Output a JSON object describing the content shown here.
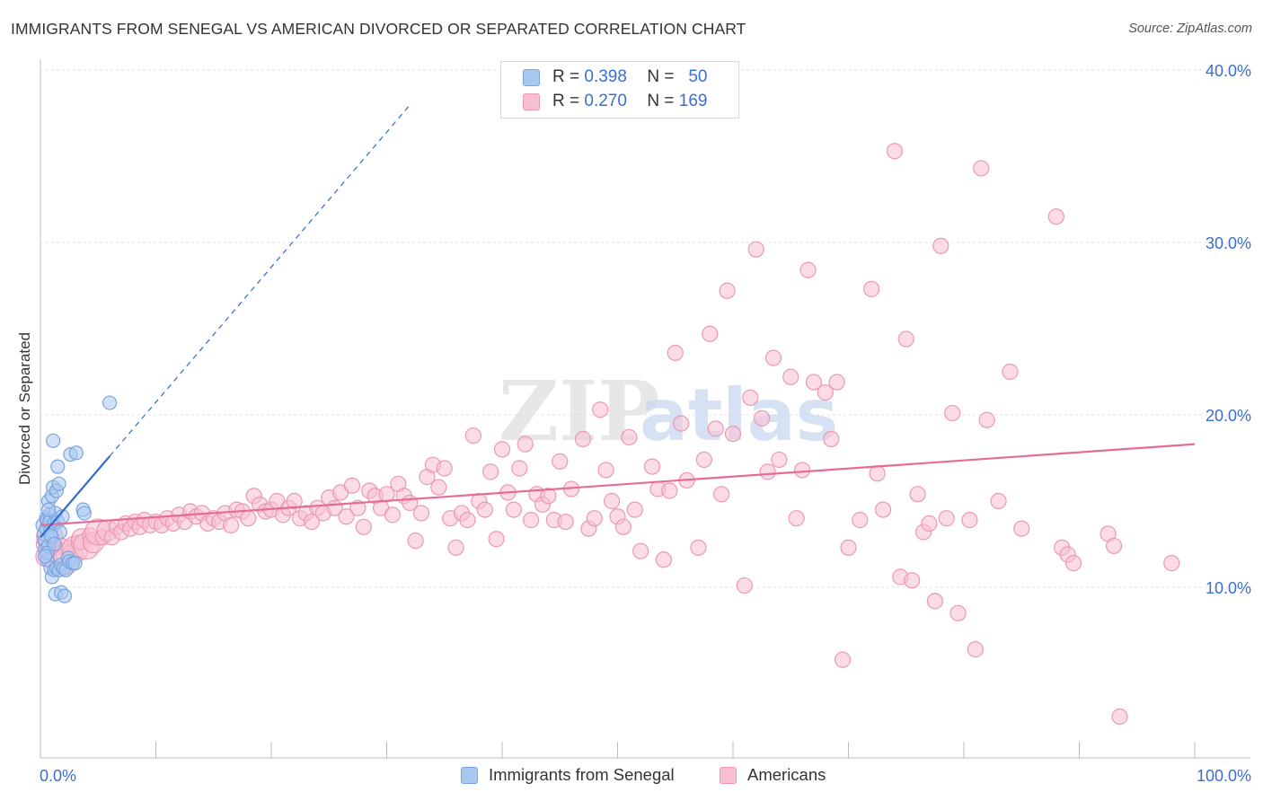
{
  "title": "IMMIGRANTS FROM SENEGAL VS AMERICAN DIVORCED OR SEPARATED CORRELATION CHART",
  "source": "Source: ZipAtlas.com",
  "watermark": {
    "part1": "ZIP",
    "part2": "atlas"
  },
  "legend": {
    "rows": [
      {
        "r_label": "R =",
        "r_value": "0.398",
        "n_label": "N =",
        "n_value": "50",
        "color": "#a9c8f0",
        "stroke": "#7ba3de"
      },
      {
        "r_label": "R =",
        "r_value": "0.270",
        "n_label": "N =",
        "n_value": "169",
        "color": "#f8bfd2",
        "stroke": "#ec98b4"
      }
    ]
  },
  "bottom_legend": [
    {
      "label": "Immigrants from Senegal",
      "color": "#a9c8f0",
      "stroke": "#7ba3de"
    },
    {
      "label": "Americans",
      "color": "#f8bfd2",
      "stroke": "#ec98b4"
    }
  ],
  "chart_data": {
    "type": "scatter",
    "title": "IMMIGRANTS FROM SENEGAL VS AMERICAN DIVORCED OR SEPARATED CORRELATION CHART",
    "xlabel": "",
    "ylabel": "Divorced or Separated",
    "xlim": [
      0,
      100
    ],
    "ylim": [
      0,
      40
    ],
    "x_tick_labels": [
      "0.0%",
      "100.0%"
    ],
    "y_ticks": [
      10,
      20,
      30,
      40
    ],
    "y_tick_labels": [
      "10.0%",
      "20.0%",
      "30.0%",
      "40.0%"
    ],
    "grid": true,
    "legend_position": "top-center",
    "colors": {
      "senegal": "#7ba3de",
      "americans": "#ec98b4",
      "senegal_line": "#2f6ad0",
      "americans_line": "#e56b98",
      "tick_label": "#3a6fd1"
    },
    "series": [
      {
        "name": "Immigrants from Senegal",
        "r": 0.398,
        "n": 50,
        "trend": {
          "x0": 0,
          "y0": 12.9,
          "x1": 6,
          "y1": 17.6,
          "extend_to_x": 32
        },
        "points": [
          [
            0.2,
            13.6
          ],
          [
            0.3,
            13.1
          ],
          [
            0.4,
            12.7
          ],
          [
            0.4,
            12.2
          ],
          [
            0.5,
            14.0
          ],
          [
            0.5,
            13.4
          ],
          [
            0.6,
            11.6
          ],
          [
            0.6,
            13.9
          ],
          [
            0.7,
            12.4
          ],
          [
            0.7,
            15.0
          ],
          [
            0.8,
            14.2
          ],
          [
            0.8,
            13.8
          ],
          [
            0.9,
            13.3
          ],
          [
            0.9,
            11.1
          ],
          [
            1.0,
            15.3
          ],
          [
            1.0,
            10.6
          ],
          [
            1.0,
            12.9
          ],
          [
            1.1,
            18.5
          ],
          [
            1.1,
            15.8
          ],
          [
            1.2,
            13.7
          ],
          [
            1.2,
            11.0
          ],
          [
            1.3,
            9.6
          ],
          [
            1.3,
            14.3
          ],
          [
            1.4,
            15.6
          ],
          [
            1.4,
            11.1
          ],
          [
            1.5,
            13.8
          ],
          [
            1.5,
            17.0
          ],
          [
            1.6,
            11.0
          ],
          [
            1.6,
            16.0
          ],
          [
            1.7,
            13.2
          ],
          [
            1.8,
            11.3
          ],
          [
            1.8,
            9.7
          ],
          [
            1.9,
            14.1
          ],
          [
            2.0,
            11.1
          ],
          [
            2.1,
            9.5
          ],
          [
            2.2,
            11.0
          ],
          [
            2.4,
            11.7
          ],
          [
            2.5,
            11.5
          ],
          [
            2.6,
            17.7
          ],
          [
            2.8,
            11.4
          ],
          [
            3.0,
            11.4
          ],
          [
            3.1,
            17.8
          ],
          [
            3.7,
            14.5
          ],
          [
            3.8,
            14.3
          ],
          [
            6.0,
            20.7
          ],
          [
            0.6,
            12.0
          ],
          [
            0.9,
            13.0
          ],
          [
            1.2,
            12.5
          ],
          [
            0.4,
            11.8
          ],
          [
            0.7,
            14.5
          ]
        ]
      },
      {
        "name": "Americans",
        "r": 0.27,
        "n": 169,
        "trend": {
          "x0": 0,
          "y0": 13.6,
          "x1": 100,
          "y1": 18.3
        },
        "points": [
          [
            0.3,
            12.5
          ],
          [
            0.5,
            11.8
          ],
          [
            0.8,
            12.9
          ],
          [
            1.0,
            12.2
          ],
          [
            1.2,
            12.0
          ],
          [
            1.5,
            11.6
          ],
          [
            1.8,
            12.4
          ],
          [
            2.0,
            11.9
          ],
          [
            2.2,
            11.5
          ],
          [
            2.5,
            12.3
          ],
          [
            2.8,
            11.9
          ],
          [
            3.0,
            12.2
          ],
          [
            3.3,
            12.6
          ],
          [
            3.6,
            12.8
          ],
          [
            4.0,
            12.4
          ],
          [
            4.3,
            13.0
          ],
          [
            4.6,
            12.6
          ],
          [
            5.0,
            13.2
          ],
          [
            5.4,
            12.9
          ],
          [
            5.8,
            13.3
          ],
          [
            6.2,
            12.9
          ],
          [
            6.6,
            13.5
          ],
          [
            7.0,
            13.2
          ],
          [
            7.4,
            13.7
          ],
          [
            7.8,
            13.4
          ],
          [
            8.2,
            13.8
          ],
          [
            8.6,
            13.5
          ],
          [
            9.0,
            13.9
          ],
          [
            9.5,
            13.6
          ],
          [
            10.0,
            13.8
          ],
          [
            10.5,
            13.6
          ],
          [
            11.0,
            14.0
          ],
          [
            11.5,
            13.7
          ],
          [
            12.0,
            14.2
          ],
          [
            12.5,
            13.8
          ],
          [
            13.0,
            14.4
          ],
          [
            13.5,
            14.1
          ],
          [
            14.0,
            14.3
          ],
          [
            14.5,
            13.7
          ],
          [
            15.0,
            14.0
          ],
          [
            15.5,
            13.8
          ],
          [
            16.0,
            14.3
          ],
          [
            16.5,
            13.6
          ],
          [
            17.0,
            14.5
          ],
          [
            17.5,
            14.4
          ],
          [
            18.0,
            14.0
          ],
          [
            18.5,
            15.3
          ],
          [
            19.0,
            14.8
          ],
          [
            19.5,
            14.4
          ],
          [
            20.0,
            14.5
          ],
          [
            20.5,
            15.0
          ],
          [
            21.0,
            14.2
          ],
          [
            21.5,
            14.6
          ],
          [
            22.0,
            15.0
          ],
          [
            22.5,
            14.0
          ],
          [
            23.0,
            14.3
          ],
          [
            23.5,
            13.8
          ],
          [
            24.0,
            14.6
          ],
          [
            24.5,
            14.3
          ],
          [
            25.0,
            15.2
          ],
          [
            25.5,
            14.6
          ],
          [
            26.0,
            15.5
          ],
          [
            26.5,
            14.1
          ],
          [
            27.0,
            15.9
          ],
          [
            27.5,
            14.6
          ],
          [
            28.0,
            13.5
          ],
          [
            28.5,
            15.6
          ],
          [
            29.0,
            15.3
          ],
          [
            29.5,
            14.6
          ],
          [
            30.0,
            15.4
          ],
          [
            30.5,
            14.2
          ],
          [
            31.0,
            16.0
          ],
          [
            31.5,
            15.3
          ],
          [
            32.0,
            14.9
          ],
          [
            32.5,
            12.7
          ],
          [
            33.0,
            14.3
          ],
          [
            33.5,
            16.4
          ],
          [
            34.0,
            17.1
          ],
          [
            34.5,
            15.8
          ],
          [
            35.0,
            16.9
          ],
          [
            35.5,
            14.0
          ],
          [
            36.0,
            12.3
          ],
          [
            36.5,
            14.3
          ],
          [
            37.0,
            13.9
          ],
          [
            37.5,
            18.8
          ],
          [
            38.0,
            15.0
          ],
          [
            38.5,
            14.5
          ],
          [
            39.0,
            16.7
          ],
          [
            39.5,
            12.8
          ],
          [
            40.0,
            18.0
          ],
          [
            40.5,
            15.5
          ],
          [
            41.0,
            14.5
          ],
          [
            41.5,
            16.9
          ],
          [
            42.0,
            18.3
          ],
          [
            42.5,
            13.9
          ],
          [
            43.0,
            15.4
          ],
          [
            43.5,
            14.8
          ],
          [
            44.0,
            15.3
          ],
          [
            44.5,
            13.9
          ],
          [
            45.0,
            17.3
          ],
          [
            45.5,
            13.8
          ],
          [
            46.0,
            15.7
          ],
          [
            47.0,
            18.6
          ],
          [
            47.5,
            13.4
          ],
          [
            48.0,
            14.0
          ],
          [
            48.5,
            20.3
          ],
          [
            49.0,
            16.8
          ],
          [
            49.5,
            15.0
          ],
          [
            50.0,
            14.1
          ],
          [
            50.5,
            13.5
          ],
          [
            51.0,
            18.7
          ],
          [
            51.5,
            14.5
          ],
          [
            52.0,
            12.1
          ],
          [
            53.0,
            17.0
          ],
          [
            53.5,
            15.7
          ],
          [
            54.0,
            11.6
          ],
          [
            54.5,
            15.6
          ],
          [
            55.0,
            23.6
          ],
          [
            55.5,
            19.5
          ],
          [
            56.0,
            16.2
          ],
          [
            57.0,
            12.3
          ],
          [
            57.5,
            17.4
          ],
          [
            58.0,
            24.7
          ],
          [
            58.5,
            19.2
          ],
          [
            59.0,
            15.4
          ],
          [
            59.5,
            27.2
          ],
          [
            60.0,
            18.9
          ],
          [
            61.0,
            10.1
          ],
          [
            61.5,
            21.0
          ],
          [
            62.0,
            29.6
          ],
          [
            62.5,
            19.8
          ],
          [
            63.0,
            16.7
          ],
          [
            63.5,
            23.3
          ],
          [
            64.0,
            17.4
          ],
          [
            65.0,
            22.2
          ],
          [
            65.5,
            14.0
          ],
          [
            66.0,
            16.8
          ],
          [
            66.5,
            28.4
          ],
          [
            67.0,
            21.9
          ],
          [
            68.0,
            21.3
          ],
          [
            68.5,
            18.6
          ],
          [
            69.0,
            21.9
          ],
          [
            69.5,
            5.8
          ],
          [
            70.0,
            12.3
          ],
          [
            71.0,
            13.9
          ],
          [
            72.0,
            27.3
          ],
          [
            72.5,
            16.6
          ],
          [
            73.0,
            14.5
          ],
          [
            74.0,
            35.3
          ],
          [
            74.5,
            10.6
          ],
          [
            75.0,
            24.4
          ],
          [
            75.5,
            10.4
          ],
          [
            76.0,
            15.4
          ],
          [
            76.5,
            13.2
          ],
          [
            77.0,
            13.7
          ],
          [
            77.5,
            9.2
          ],
          [
            78.0,
            29.8
          ],
          [
            78.5,
            14.0
          ],
          [
            79.0,
            20.1
          ],
          [
            79.5,
            8.5
          ],
          [
            80.5,
            13.9
          ],
          [
            81.0,
            6.4
          ],
          [
            81.5,
            34.3
          ],
          [
            82.0,
            19.7
          ],
          [
            83.0,
            15.0
          ],
          [
            84.0,
            22.5
          ],
          [
            85.0,
            13.4
          ],
          [
            88.0,
            31.5
          ],
          [
            88.5,
            12.3
          ],
          [
            89.0,
            11.9
          ],
          [
            89.5,
            11.4
          ],
          [
            92.5,
            13.1
          ],
          [
            93.0,
            12.4
          ],
          [
            93.5,
            2.5
          ],
          [
            98.0,
            11.4
          ]
        ]
      }
    ]
  }
}
